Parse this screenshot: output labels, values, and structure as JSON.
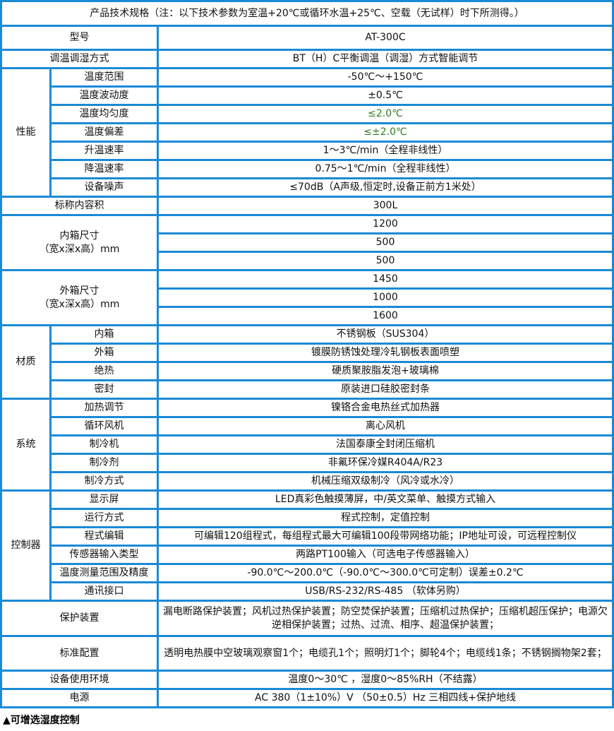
{
  "title": "产品技术规格（注：以下技术参数为室温+20℃或循环水温+25℃、空载（无试样）时下所测得。）",
  "model": {
    "label": "型号",
    "value": "AT-300C"
  },
  "method": {
    "label": "调温调湿方式",
    "value": "BT（H）C平衡调温（调湿）方式智能调节"
  },
  "performance": {
    "label": "性能",
    "rows": [
      {
        "label": "温度范围",
        "value": "-50℃～+150℃"
      },
      {
        "label": "温度波动度",
        "value": "±0.5℃"
      },
      {
        "label": "温度均匀度",
        "value": "≤2.0℃"
      },
      {
        "label": "温度偏差",
        "value": "≤±2.0℃"
      },
      {
        "label": "升温速率",
        "value": "1～3℃/min（全程非线性）"
      },
      {
        "label": "降温速率",
        "value": "0.75～1℃/min（全程非线性）"
      },
      {
        "label": "设备噪声",
        "value": "≤70dB（A声级,恒定时,设备正前方1米处）"
      }
    ]
  },
  "volume": {
    "label": "标称内容积",
    "value": "300L"
  },
  "inner": {
    "label1": "内箱尺寸",
    "label2": "（宽x深x高）mm",
    "values": [
      "1200",
      "500",
      "500"
    ]
  },
  "outer": {
    "label1": "外箱尺寸",
    "label2": "（宽x深x高）mm",
    "values": [
      "1450",
      "1000",
      "1600"
    ]
  },
  "material": {
    "label": "材质",
    "rows": [
      {
        "label": "内箱",
        "value": "不锈钢板（SUS304）"
      },
      {
        "label": "外箱",
        "value": "镀膜防锈蚀处理冷轧钢板表面喷塑"
      },
      {
        "label": "绝热",
        "value": "硬质聚胺脂发泡+玻璃棉"
      },
      {
        "label": "密封",
        "value": "原装进口硅胶密封条"
      }
    ]
  },
  "system": {
    "label": "系统",
    "rows": [
      {
        "label": "加热调节",
        "value": "镍铬合金电热丝式加热器"
      },
      {
        "label": "循环风机",
        "value": "离心风机"
      },
      {
        "label": "制冷机",
        "value": "法国泰康全封闭压缩机"
      },
      {
        "label": "制冷剂",
        "value": "非氟环保冷媒R404A/R23"
      },
      {
        "label": "制冷方式",
        "value": "机械压缩双级制冷（风冷或水冷）"
      }
    ]
  },
  "controller": {
    "label": "控制器",
    "rows": [
      {
        "label": "显示屏",
        "value": "LED真彩色触摸薄屏，中/英文菜单、触摸方式输入"
      },
      {
        "label": "运行方式",
        "value": "程式控制，定值控制"
      },
      {
        "label": "程式编辑",
        "value": "可编辑120组程式，每组程式最大可编辑100段带网络功能；IP地址可设，可远程控制仪"
      },
      {
        "label": "传感器输入类型",
        "value": "两路PT100输入（可选电子传感器输入）"
      },
      {
        "label": "温度测量范围及精度",
        "value": "-90.0℃～200.0℃（-90.0℃～300.0℃可定制）误差±0.2℃"
      },
      {
        "label": "通讯接口",
        "value": "USB/RS-232/RS-485 （软体另购）"
      }
    ]
  },
  "protection": {
    "label": "保护装置",
    "value": "漏电断路保护装置；风机过热保护装置；防空焚保护装置；压缩机过热保护；压缩机超压保护；电源欠逆相保护装置；过热、过流、相序、超温保护装置；"
  },
  "standard": {
    "label": "标准配置",
    "value": "透明电热膜中空玻璃观察窗1个；电缆孔1个；照明灯1个；脚轮4个；电缆线1条；不锈钢搁物架2套；"
  },
  "environment": {
    "label": "设备使用环境",
    "value": "温度0～30℃ ，湿度0～85%RH（不结露）"
  },
  "power": {
    "label": "电源",
    "value": "AC 380（1±10%）V （50±0.5）Hz 三相四线+保护地线"
  },
  "footnote": "▲可增选湿度控制",
  "colors": {
    "border": "#1a8ad6",
    "highlight": "#2e7d1e"
  }
}
